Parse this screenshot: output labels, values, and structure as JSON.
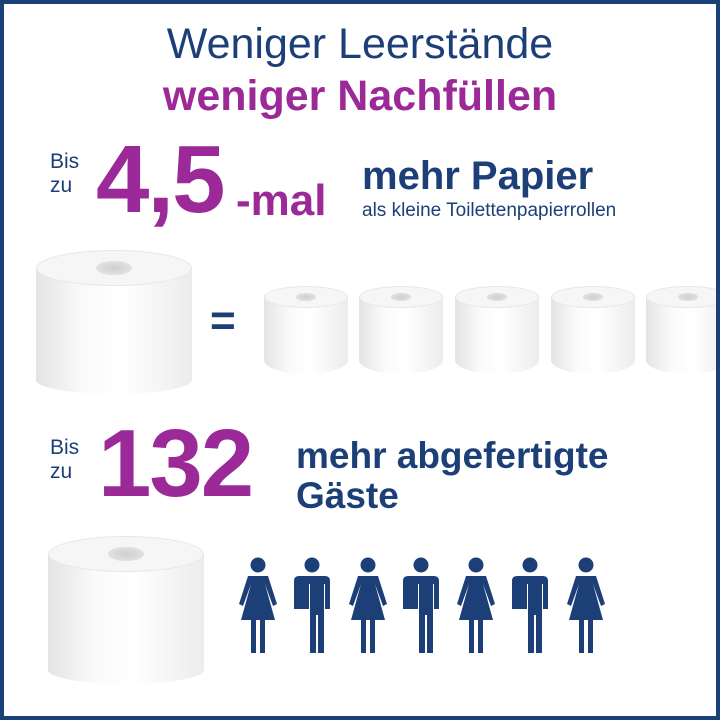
{
  "headline": {
    "line1": "Weniger Leerstände",
    "line2": "weniger Nachfüllen"
  },
  "stat1": {
    "prefix_line1": "Bis",
    "prefix_line2": "zu",
    "number": "4,5",
    "suffix": "-mal",
    "title": "mehr Papier",
    "subtitle": "als kleine Toilettenpapierrollen"
  },
  "equals": "=",
  "stat2": {
    "prefix_line1": "Bis",
    "prefix_line2": "zu",
    "number": "132",
    "title_line1": "mehr abgefertigte",
    "title_line2": "Gäste"
  },
  "people": [
    "woman",
    "man",
    "woman",
    "man",
    "woman",
    "man",
    "woman"
  ],
  "colors": {
    "navy": "#1d3f78",
    "purple": "#9b2a98"
  }
}
